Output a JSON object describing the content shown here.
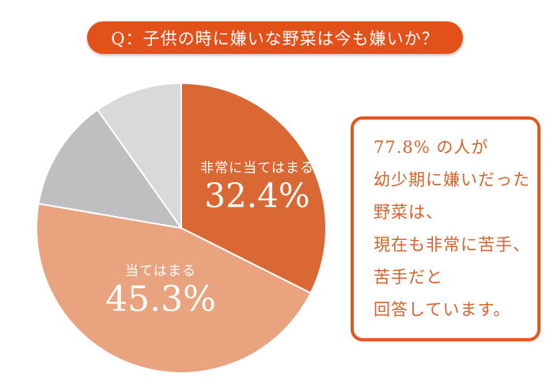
{
  "title_banner": {
    "text": "Q：子供の時に嫌いな野菜は今も嫌いか？"
  },
  "colors": {
    "background": "#FFFFFF",
    "banner_bg": "#E3511B",
    "banner_text": "#FFFFFF",
    "box_border": "#E5571E",
    "note_text": "#D4632D",
    "pie_label_text": "#FFFFFF",
    "slice_separator": "#FFFFFF"
  },
  "note_box": {
    "lines": [
      "77.8% の人が",
      "幼少期に嫌いだった",
      "野菜は、",
      "現在も非常に苦手、",
      "苦手だと",
      "回答しています。"
    ]
  },
  "chart_data": {
    "type": "pie",
    "title": "Q：子供の時に嫌いな野菜は今も嫌いか？",
    "start_angle_deg": 0,
    "direction": "clockwise",
    "slices": [
      {
        "label": "非常に当てはまる",
        "pct_label": "32.4%",
        "value": 32.4,
        "color": "#D96834"
      },
      {
        "label": "当てはまる",
        "pct_label": "45.3%",
        "value": 45.3,
        "color": "#E9A37E"
      },
      {
        "label": "",
        "pct_label": "",
        "value": 12.5,
        "color": "#BFBFC1"
      },
      {
        "label": "",
        "pct_label": "",
        "value": 9.8,
        "color": "#D9D9DB"
      }
    ],
    "annotation": "77.8% の人が幼少期に嫌いだった野菜は、現在も非常に苦手、苦手だと回答しています。"
  }
}
